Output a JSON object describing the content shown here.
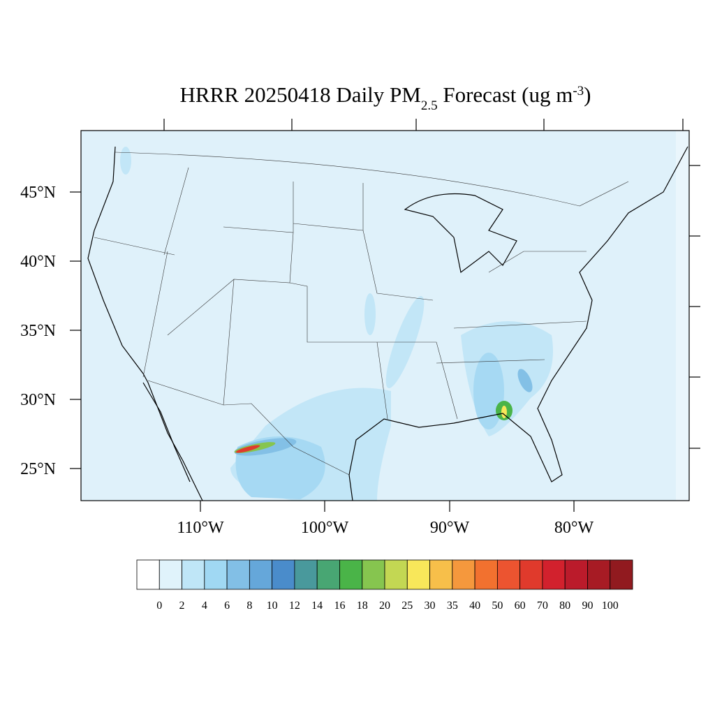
{
  "title": {
    "main": "HRRR 20250418 Daily PM",
    "subscript": "2.5",
    "rest": " Forecast (ug m",
    "superscript": "-3",
    "end": ")"
  },
  "map": {
    "lat_labels": [
      "45°N",
      "40°N",
      "35°N",
      "30°N",
      "25°N"
    ],
    "lon_labels": [
      "110°W",
      "100°W",
      "90°W",
      "80°W"
    ]
  },
  "colorbar": {
    "levels": [
      0,
      2,
      4,
      6,
      8,
      10,
      12,
      14,
      16,
      18,
      20,
      25,
      30,
      35,
      40,
      50,
      60,
      70,
      80,
      90,
      100
    ],
    "colors": [
      "#ffffff",
      "#e0f3fb",
      "#bfe6f7",
      "#a0d8f3",
      "#82bfe6",
      "#65a7da",
      "#4a8ccb",
      "#49999c",
      "#48a673",
      "#4ab448",
      "#86c54f",
      "#c3d753",
      "#f8e75a",
      "#f7bf4a",
      "#f5983d",
      "#f2712f",
      "#ec5430",
      "#e03a2c",
      "#d2212d",
      "#bb1b2b",
      "#a71b24",
      "#911a1f"
    ]
  }
}
